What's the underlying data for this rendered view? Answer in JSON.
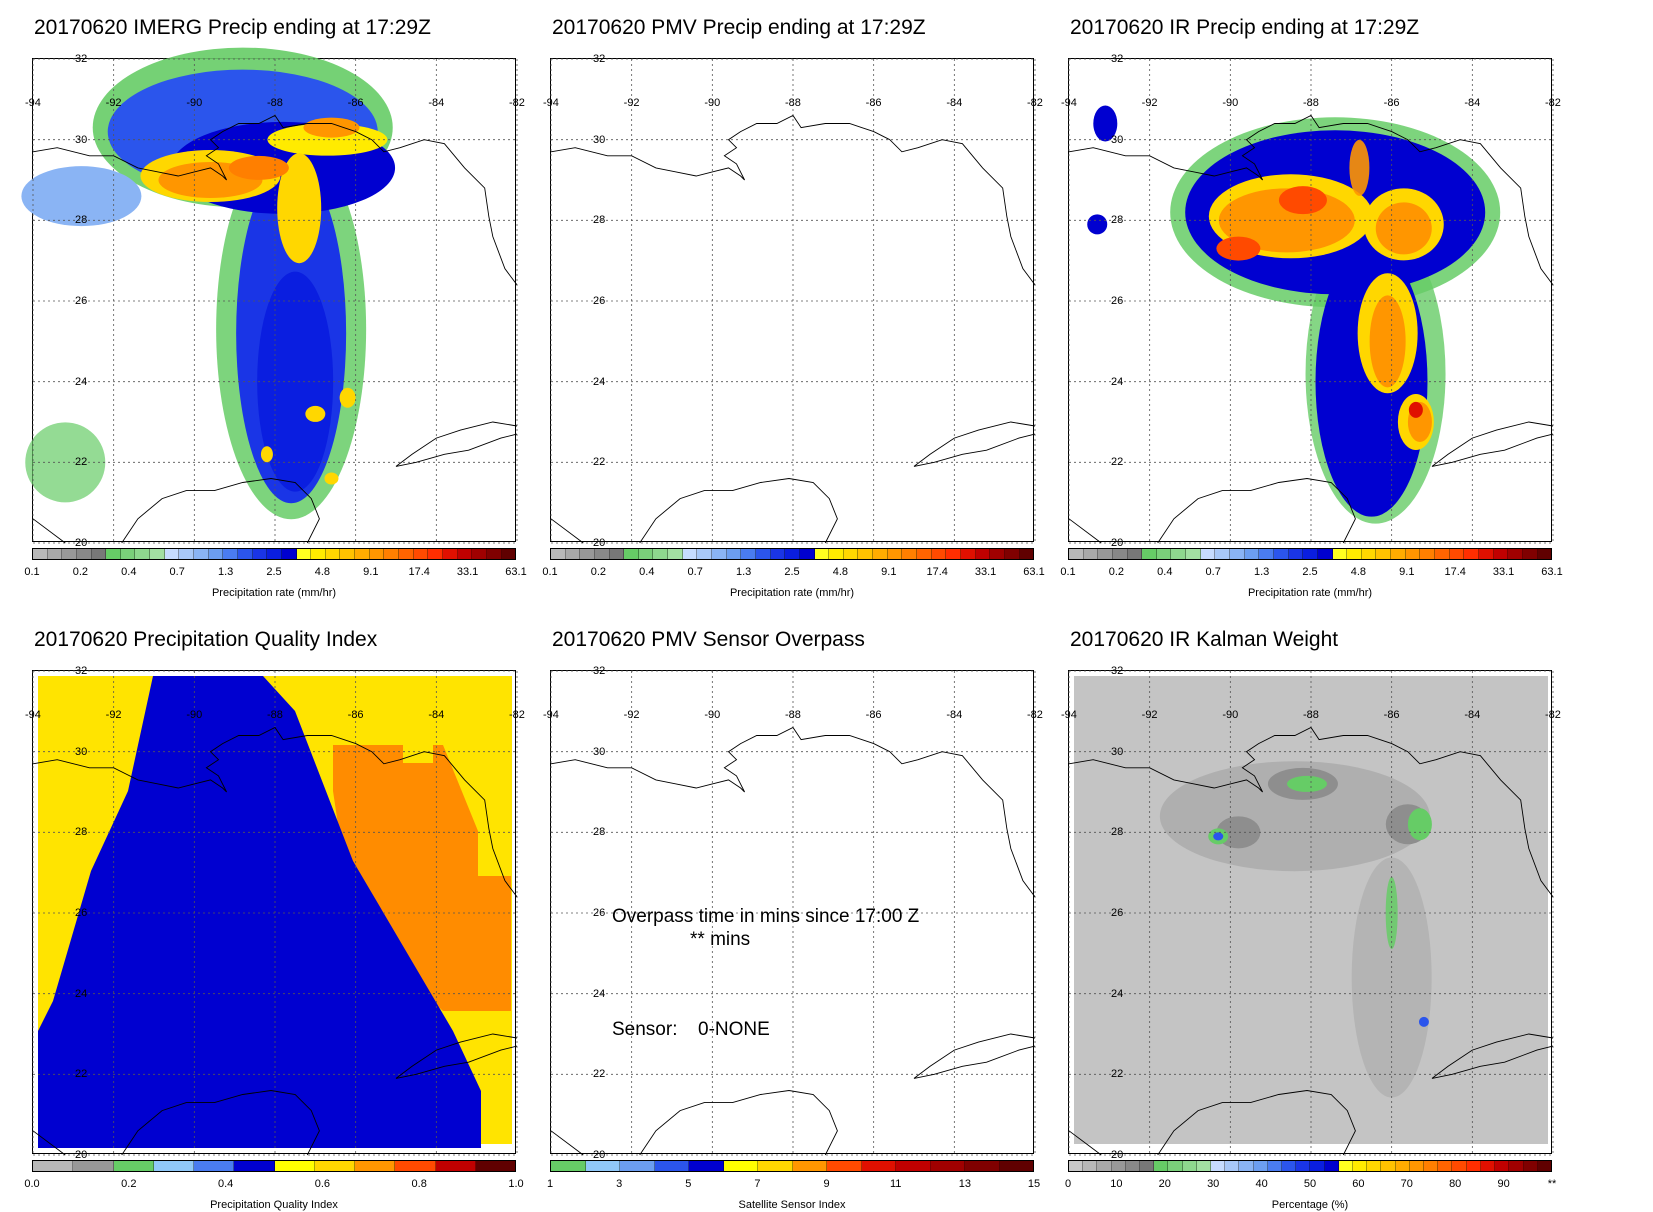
{
  "panels": [
    {
      "title": "20170620 IMERG Precip ending at 17:29Z",
      "map_type": "precip",
      "colorbar": {
        "title": "Precipitation rate (mm/hr)",
        "ticks": [
          "0.1",
          "0.2",
          "0.4",
          "0.7",
          "1.3",
          "2.5",
          "4.8",
          "9.1",
          "17.4",
          "33.1",
          "63.1"
        ],
        "colors": [
          "#b8b8b8",
          "#a8a8a8",
          "#989898",
          "#888888",
          "#787878",
          "#66cc66",
          "#7ad07a",
          "#8ed88e",
          "#a2e0a2",
          "#c6dcff",
          "#a8c8f8",
          "#8ab4f4",
          "#6c9ef0",
          "#4a7cf0",
          "#2b55ec",
          "#1a35e6",
          "#0a1ee0",
          "#0000d0",
          "#ffff20",
          "#ffeb00",
          "#ffd700",
          "#ffc200",
          "#ffac00",
          "#ff9600",
          "#ff7f00",
          "#ff6400",
          "#ff4a00",
          "#ff2e00",
          "#e01000",
          "#c00000",
          "#a00000",
          "#800000",
          "#600000"
        ]
      }
    },
    {
      "title": "20170620 PMV Precip ending at 17:29Z",
      "map_type": "blank",
      "colorbar": {
        "title": "Precipitation rate (mm/hr)",
        "ticks": [
          "0.1",
          "0.2",
          "0.4",
          "0.7",
          "1.3",
          "2.5",
          "4.8",
          "9.1",
          "17.4",
          "33.1",
          "63.1"
        ],
        "colors": [
          "#b8b8b8",
          "#a8a8a8",
          "#989898",
          "#888888",
          "#787878",
          "#66cc66",
          "#7ad07a",
          "#8ed88e",
          "#a2e0a2",
          "#c6dcff",
          "#a8c8f8",
          "#8ab4f4",
          "#6c9ef0",
          "#4a7cf0",
          "#2b55ec",
          "#1a35e6",
          "#0a1ee0",
          "#0000d0",
          "#ffff20",
          "#ffeb00",
          "#ffd700",
          "#ffc200",
          "#ffac00",
          "#ff9600",
          "#ff7f00",
          "#ff6400",
          "#ff4a00",
          "#ff2e00",
          "#e01000",
          "#c00000",
          "#a00000",
          "#800000",
          "#600000"
        ]
      }
    },
    {
      "title": "20170620 IR Precip ending at 17:29Z",
      "map_type": "precip-ir",
      "colorbar": {
        "title": "Precipitation rate (mm/hr)",
        "ticks": [
          "0.1",
          "0.2",
          "0.4",
          "0.7",
          "1.3",
          "2.5",
          "4.8",
          "9.1",
          "17.4",
          "33.1",
          "63.1"
        ],
        "colors": [
          "#b8b8b8",
          "#a8a8a8",
          "#989898",
          "#888888",
          "#787878",
          "#66cc66",
          "#7ad07a",
          "#8ed88e",
          "#a2e0a2",
          "#c6dcff",
          "#a8c8f8",
          "#8ab4f4",
          "#6c9ef0",
          "#4a7cf0",
          "#2b55ec",
          "#1a35e6",
          "#0a1ee0",
          "#0000d0",
          "#ffff20",
          "#ffeb00",
          "#ffd700",
          "#ffc200",
          "#ffac00",
          "#ff9600",
          "#ff7f00",
          "#ff6400",
          "#ff4a00",
          "#ff2e00",
          "#e01000",
          "#c00000",
          "#a00000",
          "#800000",
          "#600000"
        ]
      }
    },
    {
      "title": "20170620 Precipitation Quality Index",
      "map_type": "quality",
      "colorbar": {
        "title": "Precipitation Quality Index",
        "ticks": [
          "0.0",
          "0.2",
          "0.4",
          "0.6",
          "0.8",
          "1.0"
        ],
        "colors": [
          "#b8b8b8",
          "#989898",
          "#66cc66",
          "#90c8f8",
          "#4a7cf0",
          "#0000d0",
          "#ffff00",
          "#ffd700",
          "#ff9600",
          "#ff4a00",
          "#c00000",
          "#600000"
        ]
      }
    },
    {
      "title": "20170620 PMV Sensor Overpass",
      "map_type": "blank",
      "overlay": {
        "overpass_line": "Overpass time in mins since 17:00 Z",
        "overpass_value": "** mins",
        "sensor_label": "Sensor:",
        "sensor_value": "0-NONE"
      },
      "colorbar": {
        "title": "Satellite Sensor Index",
        "ticks": [
          "1",
          "3",
          "5",
          "7",
          "9",
          "11",
          "13",
          "15"
        ],
        "colors": [
          "#66cc66",
          "#90c8f8",
          "#6c9ef0",
          "#2b55ec",
          "#0000d0",
          "#ffff00",
          "#ffd700",
          "#ff9600",
          "#ff4a00",
          "#e01000",
          "#c00000",
          "#a00000",
          "#800000",
          "#600000"
        ]
      }
    },
    {
      "title": "20170620 IR Kalman Weight",
      "map_type": "kalman",
      "colorbar": {
        "title": "Percentage (%)",
        "ticks": [
          "0",
          "10",
          "20",
          "30",
          "40",
          "50",
          "60",
          "70",
          "80",
          "90",
          "**"
        ],
        "colors": [
          "#c8c8c8",
          "#b8b8b8",
          "#a8a8a8",
          "#989898",
          "#888888",
          "#787878",
          "#66cc66",
          "#7ad07a",
          "#8ed88e",
          "#a2e0a2",
          "#c6dcff",
          "#a8c8f8",
          "#8ab4f4",
          "#6c9ef0",
          "#4a7cf0",
          "#2b55ec",
          "#1a35e6",
          "#0a1ee0",
          "#0000d0",
          "#ffff20",
          "#ffeb00",
          "#ffd700",
          "#ffc200",
          "#ffac00",
          "#ff9600",
          "#ff7f00",
          "#ff6400",
          "#ff4a00",
          "#ff2e00",
          "#e01000",
          "#c00000",
          "#a00000",
          "#800000",
          "#600000"
        ]
      }
    }
  ],
  "axes": {
    "lon_labels": [
      "-94",
      "-92",
      "-90",
      "-88",
      "-86",
      "-84",
      "-82"
    ],
    "lat_labels": [
      "32",
      "30",
      "28",
      "26",
      "24",
      "22",
      "20"
    ]
  }
}
